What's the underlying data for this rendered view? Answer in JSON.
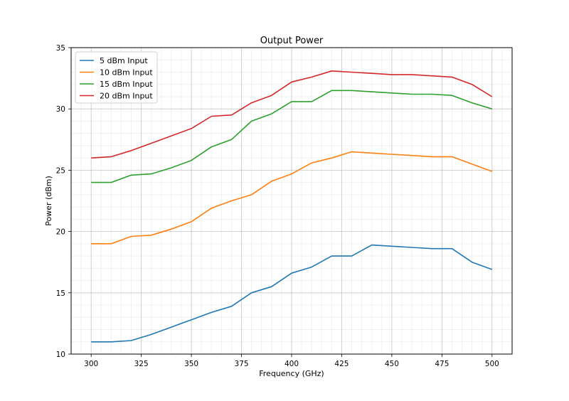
{
  "chart_data": {
    "type": "line",
    "title": "Output Power",
    "xlabel": "Frequency (GHz)",
    "ylabel": "Power (dBm)",
    "xlim": [
      290,
      510
    ],
    "ylim": [
      10,
      35
    ],
    "xticks": [
      300,
      325,
      350,
      375,
      400,
      425,
      450,
      475,
      500
    ],
    "yticks": [
      10,
      15,
      20,
      25,
      30,
      35
    ],
    "grid": true,
    "minor_grid": true,
    "legend_position": "top-left",
    "x": [
      300,
      310,
      320,
      330,
      340,
      350,
      360,
      370,
      380,
      390,
      400,
      410,
      420,
      430,
      440,
      450,
      460,
      470,
      480,
      490,
      500
    ],
    "series": [
      {
        "name": "5 dBm Input",
        "color": "#1f77b4",
        "values": [
          11.0,
          11.0,
          11.1,
          11.6,
          12.2,
          12.8,
          13.4,
          13.9,
          15.0,
          15.5,
          16.6,
          17.1,
          18.0,
          18.0,
          18.9,
          18.8,
          18.7,
          18.6,
          18.6,
          17.5,
          16.9
        ]
      },
      {
        "name": "10 dBm Input",
        "color": "#ff7f0e",
        "values": [
          19.0,
          19.0,
          19.6,
          19.7,
          20.2,
          20.8,
          21.9,
          22.5,
          23.0,
          24.1,
          24.7,
          25.6,
          26.0,
          26.5,
          26.4,
          26.3,
          26.2,
          26.1,
          26.1,
          25.5,
          24.9
        ]
      },
      {
        "name": "15 dBm Input",
        "color": "#2ca02c",
        "values": [
          24.0,
          24.0,
          24.6,
          24.7,
          25.2,
          25.8,
          26.9,
          27.5,
          29.0,
          29.6,
          30.6,
          30.6,
          31.5,
          31.5,
          31.4,
          31.3,
          31.2,
          31.2,
          31.1,
          30.5,
          30.0
        ]
      },
      {
        "name": "20 dBm Input",
        "color": "#d62728",
        "values": [
          26.0,
          26.1,
          26.6,
          27.2,
          27.8,
          28.4,
          29.4,
          29.5,
          30.5,
          31.1,
          32.2,
          32.6,
          33.1,
          33.0,
          32.9,
          32.8,
          32.8,
          32.7,
          32.6,
          32.0,
          31.0
        ]
      }
    ]
  }
}
